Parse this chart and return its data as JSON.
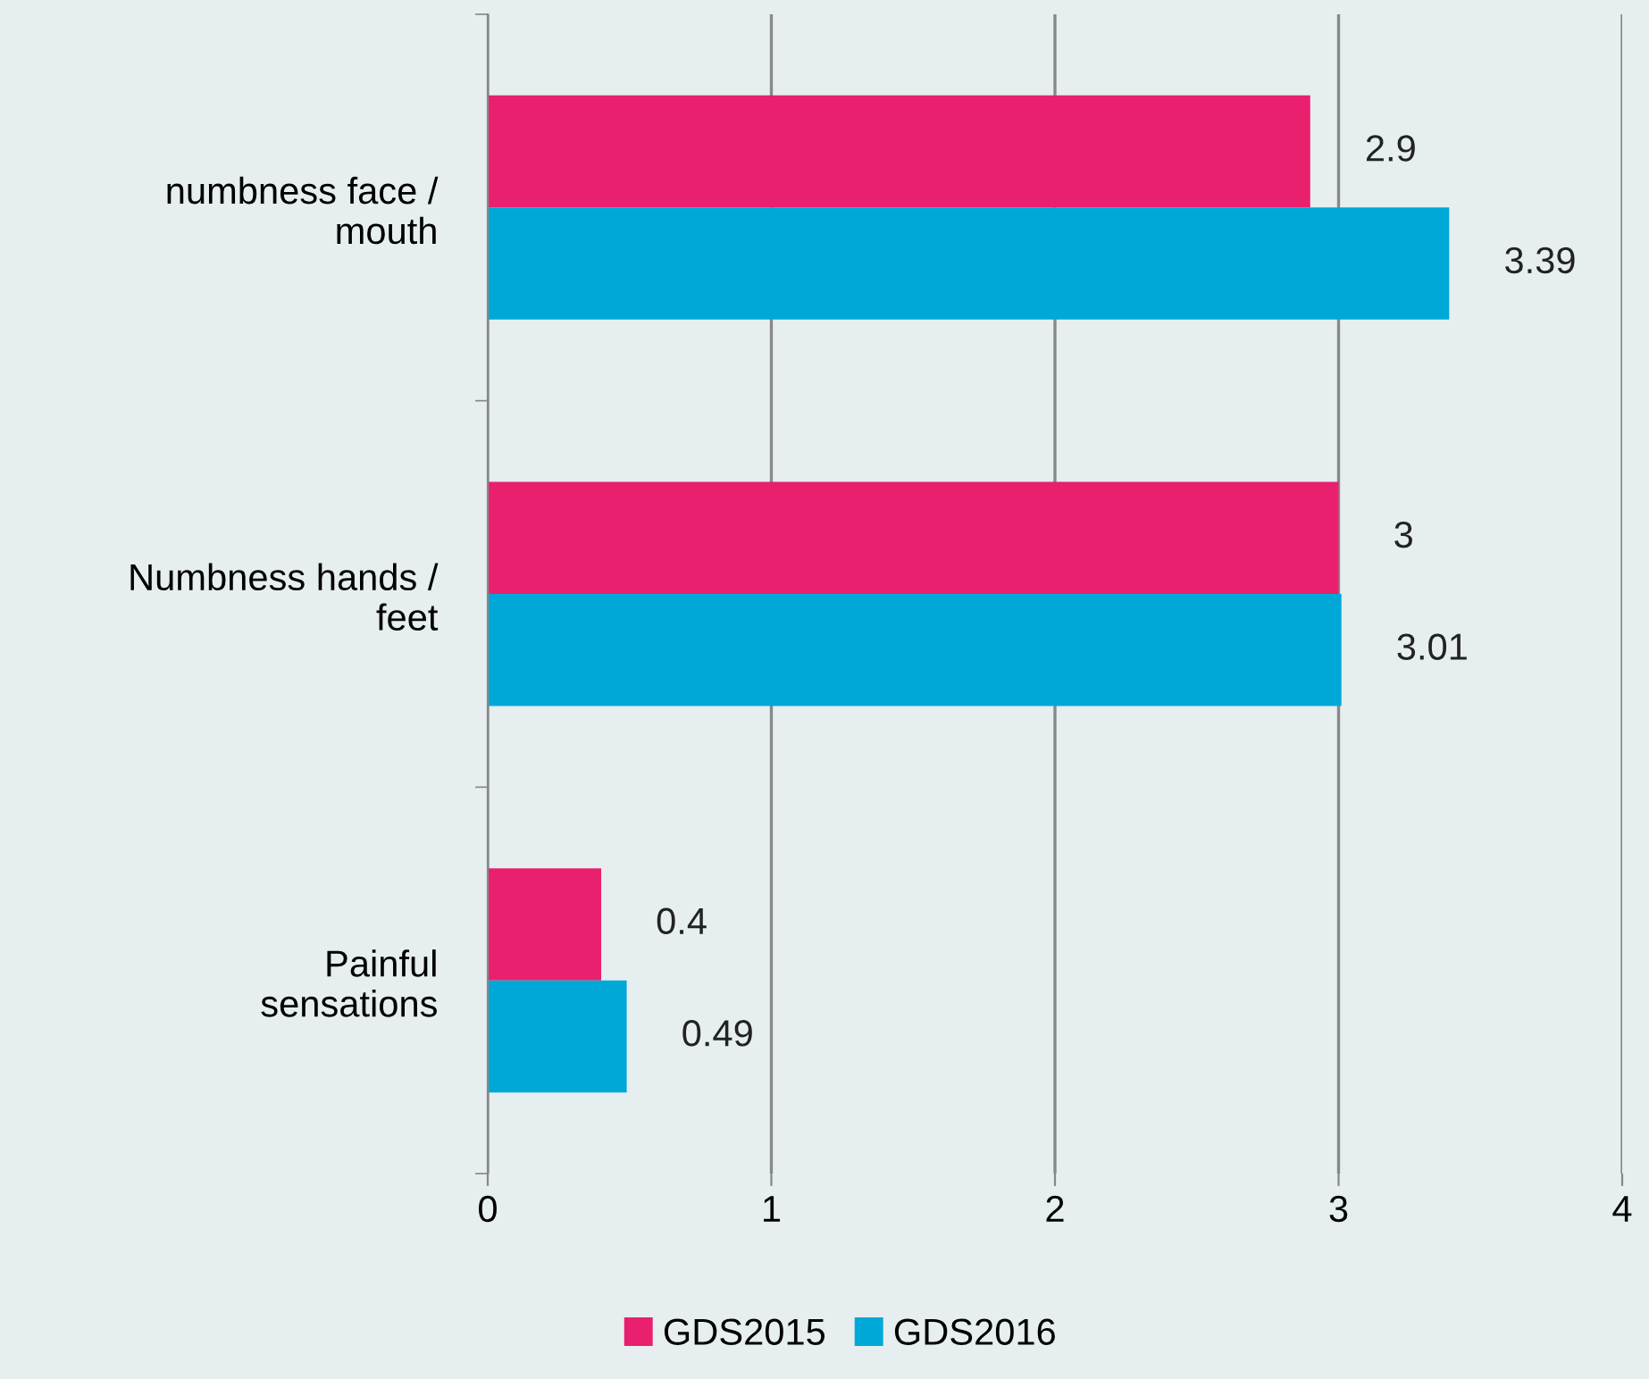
{
  "chart_data": {
    "type": "bar",
    "orientation": "horizontal",
    "categories": [
      "numbness face / mouth",
      "Numbness hands / feet",
      "Painful sensations"
    ],
    "series": [
      {
        "name": "GDS2015",
        "color": "#e8206e",
        "values": [
          2.9,
          3,
          0.4
        ]
      },
      {
        "name": "GDS2016",
        "color": "#00a8d8",
        "values": [
          3.39,
          3.01,
          0.49
        ]
      }
    ],
    "xlim": [
      0,
      4
    ],
    "xticks": [
      0,
      1,
      2,
      3,
      4
    ],
    "grid": "x",
    "legend": "bottom",
    "data_labels": true
  }
}
